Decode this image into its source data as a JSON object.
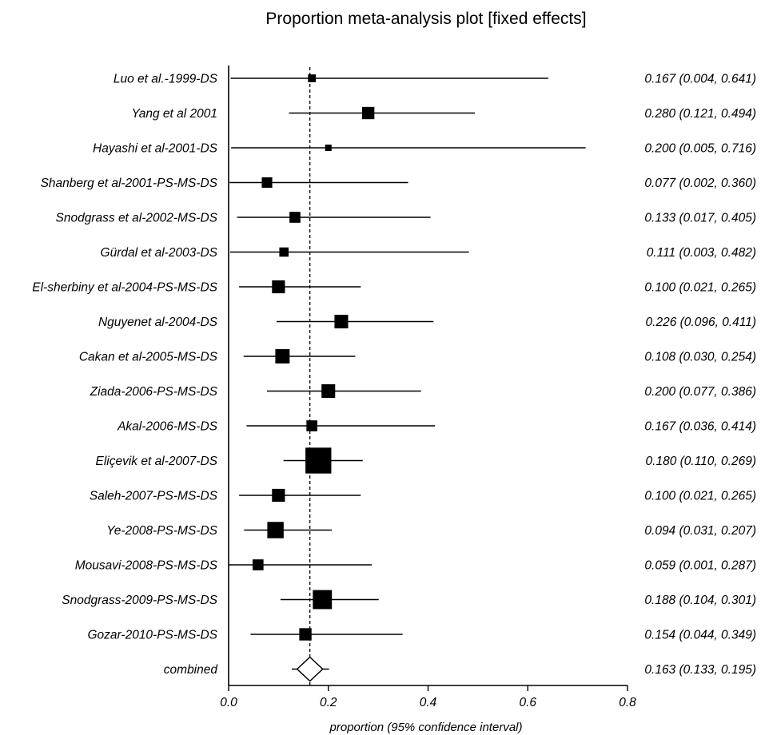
{
  "chart_data": {
    "type": "forest",
    "title": "Proportion meta-analysis plot [fixed effects]",
    "xlabel": "proportion (95% confidence interval)",
    "xlim": [
      0.0,
      0.8
    ],
    "xticks": [
      "0.0",
      "0.2",
      "0.4",
      "0.6",
      "0.8"
    ],
    "tick_values": [
      0.0,
      0.2,
      0.4,
      0.6,
      0.8
    ],
    "pooled_reference_line": 0.163,
    "studies": [
      {
        "label": "Luo et al.-1999-DS",
        "estimate": 0.167,
        "lower": 0.004,
        "upper": 0.641,
        "ci_text": "0.167 (0.004, 0.641)",
        "weight": 0.22
      },
      {
        "label": "Yang et al 2001",
        "estimate": 0.28,
        "lower": 0.121,
        "upper": 0.494,
        "ci_text": "0.280 (0.121, 0.494)",
        "weight": 0.55
      },
      {
        "label": "Hayashi et al-2001-DS",
        "estimate": 0.2,
        "lower": 0.005,
        "upper": 0.716,
        "ci_text": "0.200 (0.005, 0.716)",
        "weight": 0.12
      },
      {
        "label": "Shanberg et al-2001-PS-MS-DS",
        "estimate": 0.077,
        "lower": 0.002,
        "upper": 0.36,
        "ci_text": "0.077 (0.002, 0.360)",
        "weight": 0.42
      },
      {
        "label": "Snodgrass et al-2002-MS-DS",
        "estimate": 0.133,
        "lower": 0.017,
        "upper": 0.405,
        "ci_text": "0.133 (0.017, 0.405)",
        "weight": 0.45
      },
      {
        "label": "Gürdal et al-2003-DS",
        "estimate": 0.111,
        "lower": 0.003,
        "upper": 0.482,
        "ci_text": "0.111 (0.003, 0.482)",
        "weight": 0.33
      },
      {
        "label": "El-sherbiny et al-2004-PS-MS-DS",
        "estimate": 0.1,
        "lower": 0.021,
        "upper": 0.265,
        "ci_text": "0.100 (0.021, 0.265)",
        "weight": 0.6
      },
      {
        "label": "Nguyenet al-2004-DS",
        "estimate": 0.226,
        "lower": 0.096,
        "upper": 0.411,
        "ci_text": "0.226 (0.096, 0.411)",
        "weight": 0.65
      },
      {
        "label": "Cakan et al-2005-MS-DS",
        "estimate": 0.108,
        "lower": 0.03,
        "upper": 0.254,
        "ci_text": "0.108 (0.030, 0.254)",
        "weight": 0.7
      },
      {
        "label": "Ziada-2006-PS-MS-DS",
        "estimate": 0.2,
        "lower": 0.077,
        "upper": 0.386,
        "ci_text": "0.200 (0.077, 0.386)",
        "weight": 0.65
      },
      {
        "label": "Akal-2006-MS-DS",
        "estimate": 0.167,
        "lower": 0.036,
        "upper": 0.414,
        "ci_text": "0.167 (0.036, 0.414)",
        "weight": 0.45
      },
      {
        "label": "Eliçevik et al-2007-DS",
        "estimate": 0.18,
        "lower": 0.11,
        "upper": 0.269,
        "ci_text": "0.180 (0.110, 0.269)",
        "weight": 1.55
      },
      {
        "label": "Saleh-2007-PS-MS-DS",
        "estimate": 0.1,
        "lower": 0.021,
        "upper": 0.265,
        "ci_text": "0.100 (0.021, 0.265)",
        "weight": 0.6
      },
      {
        "label": "Ye-2008-PS-MS-DS",
        "estimate": 0.094,
        "lower": 0.031,
        "upper": 0.207,
        "ci_text": "0.094 (0.031, 0.207)",
        "weight": 0.85
      },
      {
        "label": "Mousavi-2008-PS-MS-DS",
        "estimate": 0.059,
        "lower": 0.001,
        "upper": 0.287,
        "ci_text": "0.059 (0.001, 0.287)",
        "weight": 0.45
      },
      {
        "label": "Snodgrass-2009-PS-MS-DS",
        "estimate": 0.188,
        "lower": 0.104,
        "upper": 0.301,
        "ci_text": "0.188 (0.104, 0.301)",
        "weight": 1.05
      },
      {
        "label": "Gozar-2010-PS-MS-DS",
        "estimate": 0.154,
        "lower": 0.044,
        "upper": 0.349,
        "ci_text": "0.154 (0.044, 0.349)",
        "weight": 0.55
      }
    ],
    "combined": {
      "label": "combined",
      "estimate": 0.163,
      "lower": 0.133,
      "upper": 0.195,
      "ci_text": "0.163 (0.133, 0.195)"
    }
  }
}
